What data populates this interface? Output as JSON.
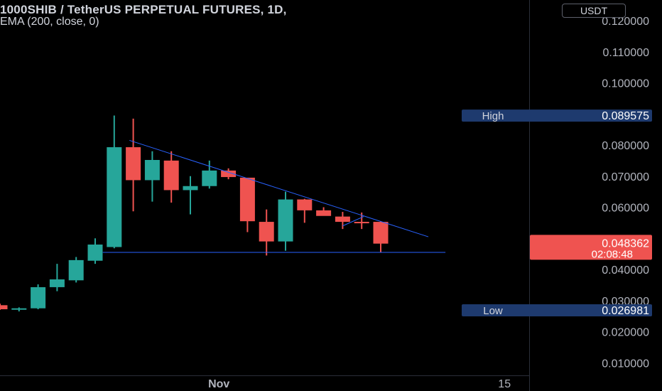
{
  "header": {
    "title": "1000SHIB / TetherUS PERPETUAL FUTURES, 1D,",
    "indicator": "EMA (200, close, 0)",
    "currency": "USDT"
  },
  "colors": {
    "up": "#26a69a",
    "down": "#ef5350",
    "trendline": "#2962ff",
    "axis_badge": "#1e3a6e"
  },
  "chart_data": {
    "type": "candlestick",
    "price_axis": {
      "ticks": [
        "0.120000",
        "0.110000",
        "0.100000",
        "0.080000",
        "0.070000",
        "0.060000",
        "0.040000",
        "0.030000",
        "0.020000",
        "0.010000"
      ],
      "ylim": [
        0.005,
        0.125
      ]
    },
    "time_axis": {
      "labels": [
        "Nov",
        "15"
      ]
    },
    "high": {
      "label": "High",
      "value": "0.089575"
    },
    "low": {
      "label": "Low",
      "value": "0.026981"
    },
    "last": {
      "value": "0.048362",
      "countdown": "02:08:48"
    },
    "candles": [
      {
        "o": 0.0285,
        "h": 0.029,
        "l": 0.027,
        "c": 0.0272
      },
      {
        "o": 0.0272,
        "h": 0.0278,
        "l": 0.0265,
        "c": 0.0275
      },
      {
        "o": 0.0275,
        "h": 0.0352,
        "l": 0.0272,
        "c": 0.0343
      },
      {
        "o": 0.0343,
        "h": 0.0418,
        "l": 0.033,
        "c": 0.0368
      },
      {
        "o": 0.0365,
        "h": 0.044,
        "l": 0.0358,
        "c": 0.043
      },
      {
        "o": 0.0428,
        "h": 0.05,
        "l": 0.0418,
        "c": 0.048
      },
      {
        "o": 0.0472,
        "h": 0.0895,
        "l": 0.0468,
        "c": 0.0793
      },
      {
        "o": 0.0793,
        "h": 0.0885,
        "l": 0.0587,
        "c": 0.0687
      },
      {
        "o": 0.0687,
        "h": 0.078,
        "l": 0.0618,
        "c": 0.0752
      },
      {
        "o": 0.075,
        "h": 0.078,
        "l": 0.0615,
        "c": 0.0655
      },
      {
        "o": 0.0655,
        "h": 0.07,
        "l": 0.0577,
        "c": 0.0668
      },
      {
        "o": 0.0668,
        "h": 0.075,
        "l": 0.066,
        "c": 0.0718
      },
      {
        "o": 0.0718,
        "h": 0.0725,
        "l": 0.069,
        "c": 0.0697
      },
      {
        "o": 0.0695,
        "h": 0.0695,
        "l": 0.052,
        "c": 0.0555
      },
      {
        "o": 0.0553,
        "h": 0.0593,
        "l": 0.0445,
        "c": 0.049
      },
      {
        "o": 0.049,
        "h": 0.065,
        "l": 0.046,
        "c": 0.0625
      },
      {
        "o": 0.0625,
        "h": 0.0627,
        "l": 0.055,
        "c": 0.059
      },
      {
        "o": 0.059,
        "h": 0.06,
        "l": 0.0575,
        "c": 0.0572
      },
      {
        "o": 0.057,
        "h": 0.0585,
        "l": 0.053,
        "c": 0.0553
      },
      {
        "o": 0.0553,
        "h": 0.0583,
        "l": 0.053,
        "c": 0.055
      },
      {
        "o": 0.0553,
        "h": 0.0555,
        "l": 0.0455,
        "c": 0.0483
      }
    ],
    "trendlines": [
      {
        "x1": 6.8,
        "y1": 0.0815,
        "x2": 22.5,
        "y2": 0.0505
      },
      {
        "x1": 5.4,
        "y1": 0.0455,
        "x2": 23.4,
        "y2": 0.0455
      },
      {
        "x1": 18.0,
        "y1": 0.054,
        "x2": 19.1,
        "y2": 0.057
      }
    ]
  }
}
